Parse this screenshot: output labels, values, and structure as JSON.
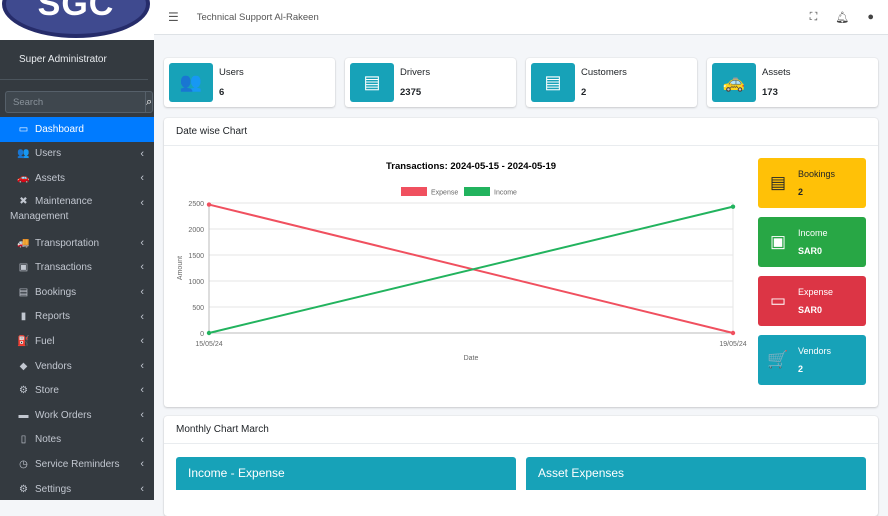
{
  "logo": "SGC",
  "sidebar": {
    "user": "Super Administrator",
    "search_placeholder": "Search",
    "items": [
      {
        "label": "Dashboard",
        "icon": "dashboard-icon",
        "glyph": "▭"
      },
      {
        "label": "Users",
        "icon": "users-icon",
        "glyph": "👥"
      },
      {
        "label": "Assets",
        "icon": "car-icon",
        "glyph": "🚗"
      },
      {
        "label": "Maintenance",
        "label2": "Management",
        "icon": "tools-icon",
        "glyph": "✖"
      },
      {
        "label": "Transportation",
        "icon": "truck-icon",
        "glyph": "🚚"
      },
      {
        "label": "Transactions",
        "icon": "money-icon",
        "glyph": "▣"
      },
      {
        "label": "Bookings",
        "icon": "address-card-icon",
        "glyph": "▤"
      },
      {
        "label": "Reports",
        "icon": "file-icon",
        "glyph": "▮"
      },
      {
        "label": "Fuel",
        "icon": "gas-pump-icon",
        "glyph": "⛽"
      },
      {
        "label": "Vendors",
        "icon": "tag-icon",
        "glyph": "◆"
      },
      {
        "label": "Store",
        "icon": "gear-icon",
        "glyph": "⚙"
      },
      {
        "label": "Work Orders",
        "icon": "briefcase-icon",
        "glyph": "▬"
      },
      {
        "label": "Notes",
        "icon": "note-icon",
        "glyph": "▯"
      },
      {
        "label": "Service Reminders",
        "icon": "clock-icon",
        "glyph": "◷"
      },
      {
        "label": "Settings",
        "icon": "gear-icon",
        "glyph": "⚙"
      }
    ]
  },
  "topbar": {
    "title": "Technical Support Al-Rakeen"
  },
  "info_boxes": [
    {
      "label": "Users",
      "value": "6",
      "glyph": "👥"
    },
    {
      "label": "Drivers",
      "value": "2375",
      "glyph": "▤"
    },
    {
      "label": "Customers",
      "value": "2",
      "glyph": "▤"
    },
    {
      "label": "Assets",
      "value": "173",
      "glyph": "🚕"
    }
  ],
  "date_chart": {
    "title": "Date wise Chart"
  },
  "side_boxes": [
    {
      "label": "Bookings",
      "value": "2",
      "color": "#ffc107",
      "text": "#212529",
      "glyph": "▤"
    },
    {
      "label": "Income",
      "value": "SAR0",
      "color": "#28a745",
      "text": "#fff",
      "glyph": "▣"
    },
    {
      "label": "Expense",
      "value": "SAR0",
      "color": "#dc3545",
      "text": "#fff",
      "glyph": "▭"
    },
    {
      "label": "Vendors",
      "value": "2",
      "color": "#17a2b8",
      "text": "#fff",
      "glyph": "🛒"
    }
  ],
  "monthly": {
    "title": "Monthly Chart March",
    "panels": [
      "Income - Expense",
      "Asset Expenses"
    ]
  },
  "chart_data": {
    "type": "line",
    "title": "Transactions: 2024-05-15 - 2024-05-19",
    "xlabel": "Date",
    "ylabel": "Amount",
    "x": [
      "15/05/24",
      "19/05/24"
    ],
    "ylim": [
      0,
      2500
    ],
    "yticks": [
      0,
      500,
      1000,
      1500,
      2000,
      2500
    ],
    "series": [
      {
        "name": "Expense",
        "color": "#f0505f",
        "values": [
          2470,
          0
        ]
      },
      {
        "name": "Income",
        "color": "#22b35e",
        "values": [
          0,
          2430
        ]
      }
    ]
  }
}
